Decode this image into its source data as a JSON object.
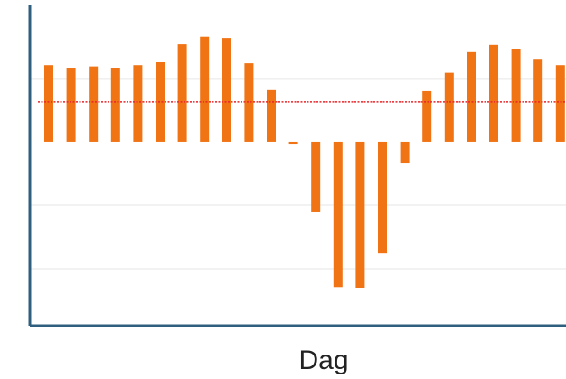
{
  "chart_data": {
    "type": "bar",
    "x_label": "Dag",
    "categories": [
      null,
      null,
      null,
      null,
      null,
      null,
      null,
      null,
      null,
      null,
      null,
      null,
      null,
      null,
      null,
      null,
      null,
      null,
      null,
      null,
      null,
      null,
      null,
      null
    ],
    "values": [
      1.21,
      1.17,
      1.19,
      1.17,
      1.21,
      1.26,
      1.54,
      1.66,
      1.64,
      1.24,
      0.83,
      -0.03,
      -1.1,
      -2.29,
      -2.3,
      -1.76,
      -0.33,
      0.8,
      1.09,
      1.43,
      1.53,
      1.47,
      1.31,
      1.21
    ],
    "color": "#f07314",
    "ylim": [
      -2.9,
      2.17
    ],
    "yticks": [
      -2,
      -1,
      1
    ],
    "grid": true,
    "reference_line": {
      "value": 0.63,
      "color": "#e8262a"
    }
  }
}
